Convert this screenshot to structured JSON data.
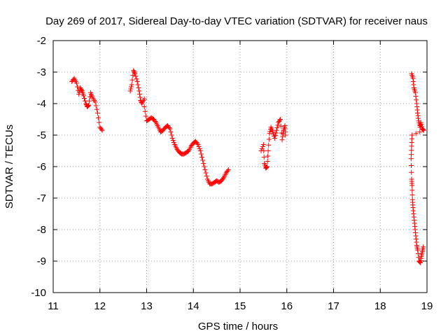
{
  "chart_data": {
    "type": "scatter",
    "title": "Day 269 of 2017, Sidereal Day-to-day VTEC variation (SDTVAR) for receiver naus",
    "xlabel": "GPS time / hours",
    "ylabel": "SDTVAR / TECUs",
    "xlim": [
      11,
      19
    ],
    "ylim": [
      -10,
      -2
    ],
    "xticks": [
      11,
      12,
      13,
      14,
      15,
      16,
      17,
      18,
      19
    ],
    "yticks": [
      -10,
      -9,
      -8,
      -7,
      -6,
      -5,
      -4,
      -3,
      -2
    ],
    "grid": true,
    "marker": "+",
    "colors": {
      "series": "#ff0000",
      "axis": "#000000",
      "grid": "#a0a0a0"
    },
    "segments": [
      {
        "name": "11.4-12.05",
        "points": [
          [
            11.4,
            -3.3
          ],
          [
            11.45,
            -3.2
          ],
          [
            11.5,
            -3.35
          ],
          [
            11.55,
            -3.7
          ],
          [
            11.58,
            -3.5
          ],
          [
            11.62,
            -3.6
          ],
          [
            11.65,
            -3.75
          ],
          [
            11.7,
            -4.0
          ],
          [
            11.73,
            -4.1
          ],
          [
            11.76,
            -4.05
          ],
          [
            11.8,
            -3.65
          ],
          [
            11.84,
            -3.8
          ],
          [
            11.9,
            -3.95
          ],
          [
            11.95,
            -4.3
          ],
          [
            12.0,
            -4.75
          ],
          [
            12.05,
            -4.85
          ]
        ]
      },
      {
        "name": "12.65-12.95",
        "points": [
          [
            12.65,
            -3.6
          ],
          [
            12.68,
            -3.4
          ],
          [
            12.72,
            -2.95
          ],
          [
            12.75,
            -3.05
          ],
          [
            12.8,
            -3.3
          ],
          [
            12.84,
            -3.6
          ],
          [
            12.87,
            -3.9
          ],
          [
            12.9,
            -4.0
          ],
          [
            12.95,
            -3.85
          ]
        ]
      },
      {
        "name": "12.95-14.75",
        "points": [
          [
            12.95,
            -4.1
          ],
          [
            13.0,
            -4.55
          ],
          [
            13.05,
            -4.5
          ],
          [
            13.1,
            -4.45
          ],
          [
            13.15,
            -4.5
          ],
          [
            13.2,
            -4.6
          ],
          [
            13.25,
            -4.75
          ],
          [
            13.3,
            -4.9
          ],
          [
            13.35,
            -4.85
          ],
          [
            13.4,
            -4.75
          ],
          [
            13.45,
            -4.7
          ],
          [
            13.5,
            -4.8
          ],
          [
            13.55,
            -5.1
          ],
          [
            13.6,
            -5.3
          ],
          [
            13.65,
            -5.45
          ],
          [
            13.7,
            -5.55
          ],
          [
            13.75,
            -5.6
          ],
          [
            13.8,
            -5.6
          ],
          [
            13.85,
            -5.55
          ],
          [
            13.9,
            -5.5
          ],
          [
            13.95,
            -5.35
          ],
          [
            14.0,
            -5.25
          ],
          [
            14.05,
            -5.2
          ],
          [
            14.1,
            -5.3
          ],
          [
            14.15,
            -5.5
          ],
          [
            14.2,
            -5.8
          ],
          [
            14.25,
            -6.1
          ],
          [
            14.3,
            -6.4
          ],
          [
            14.35,
            -6.55
          ],
          [
            14.4,
            -6.55
          ],
          [
            14.45,
            -6.5
          ],
          [
            14.5,
            -6.45
          ],
          [
            14.55,
            -6.5
          ],
          [
            14.6,
            -6.45
          ],
          [
            14.65,
            -6.35
          ],
          [
            14.7,
            -6.2
          ],
          [
            14.75,
            -6.1
          ]
        ]
      },
      {
        "name": "15.45-15.97",
        "points": [
          [
            15.45,
            -5.5
          ],
          [
            15.5,
            -5.3
          ],
          [
            15.52,
            -5.9
          ],
          [
            15.55,
            -6.05
          ],
          [
            15.58,
            -6.0
          ],
          [
            15.6,
            -5.5
          ],
          [
            15.63,
            -4.95
          ],
          [
            15.66,
            -4.75
          ],
          [
            15.7,
            -4.9
          ],
          [
            15.74,
            -5.1
          ],
          [
            15.78,
            -4.85
          ],
          [
            15.82,
            -4.6
          ],
          [
            15.86,
            -4.5
          ],
          [
            15.9,
            -5.15
          ],
          [
            15.93,
            -4.85
          ],
          [
            15.96,
            -4.7
          ],
          [
            15.97,
            -5.0
          ]
        ]
      },
      {
        "name": "18.65-18.95",
        "points": [
          [
            18.67,
            -3.05
          ],
          [
            18.7,
            -3.2
          ],
          [
            18.72,
            -3.5
          ],
          [
            18.75,
            -3.65
          ],
          [
            18.78,
            -4.0
          ],
          [
            18.8,
            -4.3
          ],
          [
            18.82,
            -4.55
          ],
          [
            18.85,
            -4.75
          ],
          [
            18.87,
            -4.6
          ],
          [
            18.9,
            -4.8
          ],
          [
            18.93,
            -4.85
          ],
          [
            18.68,
            -5.0
          ],
          [
            18.67,
            -5.35
          ],
          [
            18.66,
            -5.75
          ],
          [
            18.67,
            -6.4
          ],
          [
            18.68,
            -6.6
          ],
          [
            18.69,
            -7.05
          ],
          [
            18.7,
            -7.3
          ],
          [
            18.72,
            -7.6
          ],
          [
            18.74,
            -7.9
          ],
          [
            18.76,
            -8.2
          ],
          [
            18.78,
            -8.5
          ],
          [
            18.8,
            -8.65
          ],
          [
            18.83,
            -9.0
          ],
          [
            18.86,
            -9.05
          ],
          [
            18.88,
            -8.85
          ],
          [
            18.9,
            -8.7
          ],
          [
            18.92,
            -8.55
          ]
        ]
      }
    ]
  }
}
